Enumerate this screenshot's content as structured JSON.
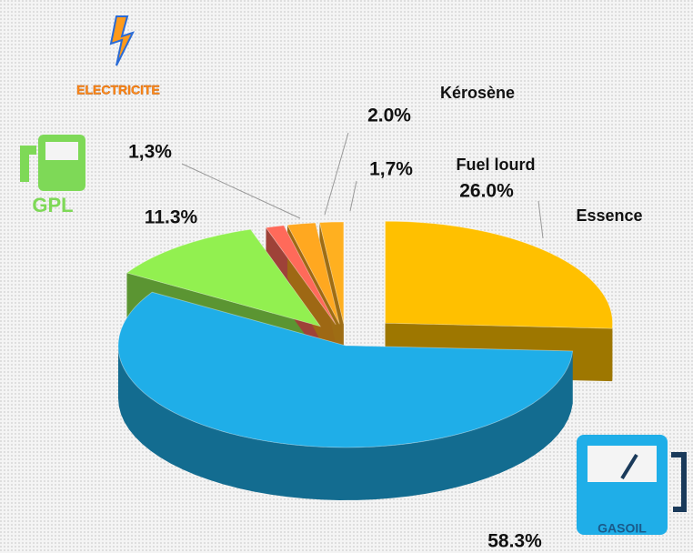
{
  "chart_data": {
    "type": "pie3d",
    "categories": [
      "Essence",
      "GASOIL",
      "GPL",
      "ELECTRICITE",
      "Kérosène",
      "Fuel lourd"
    ],
    "values": [
      26.0,
      58.3,
      11.3,
      1.3,
      2.0,
      1.7
    ],
    "value_labels": [
      "26.0%",
      "58.3%",
      "11.3%",
      "1,3%",
      "2.0%",
      "1,7%"
    ],
    "colors": [
      "#ffc000",
      "#1faee8",
      "#92f050",
      "#ff6a5a",
      "#ffa820",
      "#ffb020"
    ]
  }
}
